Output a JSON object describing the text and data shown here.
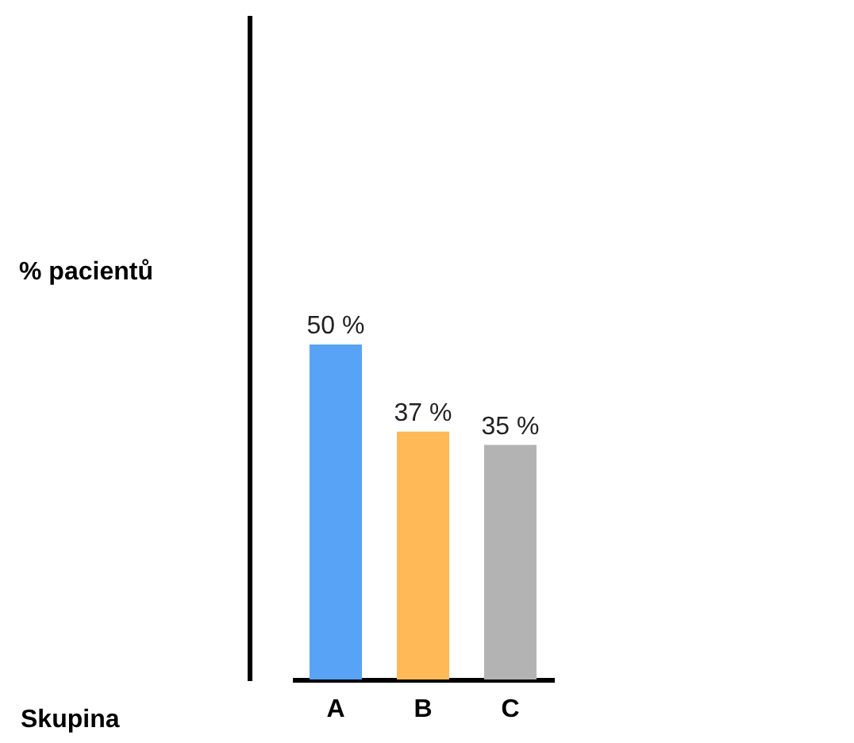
{
  "chart_data": {
    "type": "bar",
    "annotations": [
      "% pacientů",
      "Skupina"
    ],
    "categories": [
      "A",
      "B",
      "C"
    ],
    "values": [
      50,
      37,
      35
    ],
    "colors": [
      "#58a3f5",
      "#ffb957",
      "#b3b3b3"
    ],
    "value_labels": [
      "50 %",
      "37 %",
      "35 %"
    ]
  }
}
